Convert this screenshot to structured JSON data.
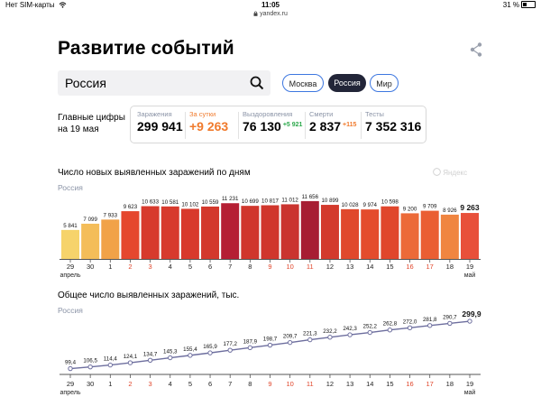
{
  "status_bar": {
    "carrier": "Нет SIM-карты",
    "time": "11:05",
    "url": "yandex.ru",
    "battery": "31 %"
  },
  "header": {
    "title": "Развитие событий"
  },
  "search": {
    "value": "Россия"
  },
  "region_pills": [
    {
      "label": "Москва",
      "selected": false
    },
    {
      "label": "Россия",
      "selected": true
    },
    {
      "label": "Мир",
      "selected": false
    }
  ],
  "main_figures": {
    "label_line1": "Главные цифры",
    "label_line2": "на 19 мая",
    "stats": [
      {
        "label": "Заражения",
        "value": "299 941",
        "delta": "",
        "color": "#000000",
        "label_color": "#8a93a6"
      },
      {
        "label": "За сутки",
        "value": "+9 263",
        "delta": "",
        "color": "#f07a2c",
        "label_color": "#f07a2c"
      },
      {
        "label": "Выздоровления",
        "value": "76 130",
        "delta": "+5 921",
        "color": "#000000",
        "label_color": "#8a93a6",
        "delta_color": "#2aa84a"
      },
      {
        "label": "Смерти",
        "value": "2 837",
        "delta": "+115",
        "color": "#000000",
        "label_color": "#8a93a6",
        "delta_color": "#f07a2c"
      },
      {
        "label": "Тесты",
        "value": "7 352 316",
        "delta": "",
        "color": "#000000",
        "label_color": "#8a93a6"
      }
    ]
  },
  "watermark": "Яндекс",
  "chart_data": [
    {
      "type": "bar",
      "title": "Число новых выявленных заражений по дням",
      "subtitle": "Россия",
      "categories": [
        "29",
        "30",
        "1",
        "2",
        "3",
        "4",
        "5",
        "6",
        "7",
        "8",
        "9",
        "10",
        "11",
        "12",
        "13",
        "14",
        "15",
        "16",
        "17",
        "18",
        "19"
      ],
      "category_colors": [
        "#222222",
        "#222222",
        "#222222",
        "#e0452a",
        "#e0452a",
        "#222222",
        "#222222",
        "#222222",
        "#222222",
        "#222222",
        "#e0452a",
        "#e0452a",
        "#e0452a",
        "#222222",
        "#222222",
        "#222222",
        "#222222",
        "#e0452a",
        "#e0452a",
        "#222222",
        "#222222"
      ],
      "month_labels": [
        {
          "index": 0,
          "text": "апрель"
        },
        {
          "index": 20,
          "text": "май"
        }
      ],
      "values": [
        5841,
        7099,
        7933,
        9623,
        10633,
        10581,
        10102,
        10559,
        11231,
        10699,
        10817,
        11012,
        11656,
        10899,
        10028,
        9974,
        10598,
        9200,
        9709,
        8926,
        9263
      ],
      "value_labels": [
        "5 841",
        "7 099",
        "7 933",
        "9 623",
        "10 633",
        "10 581",
        "10 102",
        "10 559",
        "11 231",
        "10 699",
        "10 817",
        "11 012",
        "11 656",
        "10 899",
        "10 028",
        "9 974",
        "10 598",
        "9 200",
        "9 709",
        "8 926",
        "9 263"
      ],
      "bar_colors": [
        "#f6d36b",
        "#f4bd59",
        "#f1a248",
        "#e5472e",
        "#d73a2d",
        "#d73a2d",
        "#d8392c",
        "#d3382c",
        "#b51f34",
        "#d0362c",
        "#d0362c",
        "#ca342f",
        "#a71d33",
        "#d33a2c",
        "#e0482c",
        "#e44c2c",
        "#e0462c",
        "#ec6a38",
        "#ea5e33",
        "#f08540",
        "#e8503a"
      ],
      "highlight_last": true,
      "ylim": [
        0,
        12000
      ],
      "grid": false
    },
    {
      "type": "line",
      "title": "Общее число выявленных заражений, тыс.",
      "subtitle": "Россия",
      "categories": [
        "29",
        "30",
        "1",
        "2",
        "3",
        "4",
        "5",
        "6",
        "7",
        "8",
        "9",
        "10",
        "11",
        "12",
        "13",
        "14",
        "15",
        "16",
        "17",
        "18",
        "19"
      ],
      "category_colors": [
        "#222222",
        "#222222",
        "#222222",
        "#e0452a",
        "#e0452a",
        "#222222",
        "#222222",
        "#222222",
        "#222222",
        "#222222",
        "#e0452a",
        "#e0452a",
        "#e0452a",
        "#222222",
        "#222222",
        "#222222",
        "#222222",
        "#e0452a",
        "#e0452a",
        "#222222",
        "#222222"
      ],
      "month_labels": [
        {
          "index": 0,
          "text": "апрель"
        },
        {
          "index": 20,
          "text": "май"
        }
      ],
      "values": [
        99.4,
        106.5,
        114.4,
        124.1,
        134.7,
        145.3,
        155.4,
        165.9,
        177.2,
        187.9,
        198.7,
        209.7,
        221.3,
        232.2,
        242.3,
        252.2,
        262.8,
        272.0,
        281.8,
        290.7,
        299.9
      ],
      "value_labels": [
        "99,4",
        "106,5",
        "114,4",
        "124,1",
        "134,7",
        "145,3",
        "155,4",
        "165,9",
        "177,2",
        "187,9",
        "198,7",
        "209,7",
        "221,3",
        "232,2",
        "242,3",
        "252,2",
        "262,8",
        "272,0",
        "281,8",
        "290,7",
        "299,9"
      ],
      "line_color": "#6d6e9e",
      "ylim": [
        90,
        300
      ],
      "grid": false
    }
  ]
}
